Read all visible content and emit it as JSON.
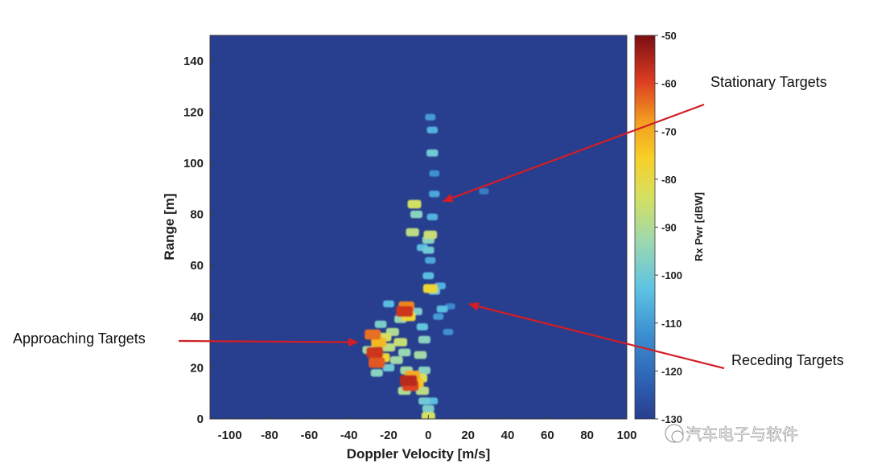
{
  "chart_data": {
    "type": "heatmap",
    "title": "",
    "xlabel": "Doppler Velocity [m/s]",
    "ylabel": "Range [m]",
    "xlim": [
      -110,
      100
    ],
    "ylim": [
      0,
      150
    ],
    "xticks": [
      -100,
      -80,
      -60,
      -40,
      -20,
      0,
      20,
      40,
      60,
      80,
      100
    ],
    "yticks": [
      0,
      20,
      40,
      60,
      80,
      100,
      120,
      140
    ],
    "background_value": -125,
    "grid": false,
    "colorbar": {
      "label": "Rx Pwr [dBW]",
      "range": [
        -130,
        -50
      ],
      "ticks": [
        -50,
        -60,
        -70,
        -80,
        -90,
        -100,
        -110,
        -120,
        -130
      ],
      "colormap": "jet"
    },
    "cells": [
      {
        "x": -28,
        "y": 33,
        "value": -64
      },
      {
        "x": -27,
        "y": 26,
        "value": -58
      },
      {
        "x": -26,
        "y": 22,
        "value": -62
      },
      {
        "x": -25,
        "y": 30,
        "value": -72
      },
      {
        "x": -23,
        "y": 24,
        "value": -78
      },
      {
        "x": -22,
        "y": 32,
        "value": -84
      },
      {
        "x": -20,
        "y": 28,
        "value": -88
      },
      {
        "x": -18,
        "y": 34,
        "value": -90
      },
      {
        "x": -16,
        "y": 23,
        "value": -92
      },
      {
        "x": -14,
        "y": 30,
        "value": -86
      },
      {
        "x": -12,
        "y": 26,
        "value": -94
      },
      {
        "x": -24,
        "y": 37,
        "value": -98
      },
      {
        "x": -26,
        "y": 18,
        "value": -96
      },
      {
        "x": -20,
        "y": 20,
        "value": -100
      },
      {
        "x": -30,
        "y": 27,
        "value": -92
      },
      {
        "x": -12,
        "y": 42,
        "value": -58
      },
      {
        "x": -11,
        "y": 44,
        "value": -66
      },
      {
        "x": -10,
        "y": 40,
        "value": -78
      },
      {
        "x": -6,
        "y": 42,
        "value": -98
      },
      {
        "x": -14,
        "y": 39,
        "value": -94
      },
      {
        "x": -20,
        "y": 45,
        "value": -104
      },
      {
        "x": -10,
        "y": 15,
        "value": -56
      },
      {
        "x": -9,
        "y": 13,
        "value": -60
      },
      {
        "x": -8,
        "y": 17,
        "value": -70
      },
      {
        "x": -6,
        "y": 14,
        "value": -74
      },
      {
        "x": -4,
        "y": 16,
        "value": -82
      },
      {
        "x": -3,
        "y": 11,
        "value": -88
      },
      {
        "x": -12,
        "y": 11,
        "value": -90
      },
      {
        "x": -2,
        "y": 19,
        "value": -96
      },
      {
        "x": -11,
        "y": 19,
        "value": -92
      },
      {
        "x": -4,
        "y": 25,
        "value": -92
      },
      {
        "x": -2,
        "y": 31,
        "value": -96
      },
      {
        "x": -3,
        "y": 36,
        "value": -102
      },
      {
        "x": 0,
        "y": 1,
        "value": -84
      },
      {
        "x": 0,
        "y": 4,
        "value": -98
      },
      {
        "x": -2,
        "y": 7,
        "value": -100
      },
      {
        "x": 2,
        "y": 7,
        "value": -104
      },
      {
        "x": 1,
        "y": 51,
        "value": -78
      },
      {
        "x": 3,
        "y": 50,
        "value": -100
      },
      {
        "x": 6,
        "y": 52,
        "value": -106
      },
      {
        "x": 0,
        "y": 56,
        "value": -104
      },
      {
        "x": 1,
        "y": 62,
        "value": -108
      },
      {
        "x": 0,
        "y": 66,
        "value": -100
      },
      {
        "x": 1,
        "y": 72,
        "value": -86
      },
      {
        "x": 0,
        "y": 70,
        "value": -96
      },
      {
        "x": -8,
        "y": 73,
        "value": -88
      },
      {
        "x": -7,
        "y": 84,
        "value": -84
      },
      {
        "x": -6,
        "y": 80,
        "value": -96
      },
      {
        "x": -3,
        "y": 67,
        "value": -104
      },
      {
        "x": 2,
        "y": 79,
        "value": -106
      },
      {
        "x": 3,
        "y": 88,
        "value": -108
      },
      {
        "x": 2,
        "y": 104,
        "value": -100
      },
      {
        "x": 2,
        "y": 113,
        "value": -106
      },
      {
        "x": 1,
        "y": 118,
        "value": -110
      },
      {
        "x": 3,
        "y": 96,
        "value": -112
      },
      {
        "x": 7,
        "y": 43,
        "value": -104
      },
      {
        "x": 5,
        "y": 40,
        "value": -110
      },
      {
        "x": 11,
        "y": 44,
        "value": -114
      },
      {
        "x": 28,
        "y": 89,
        "value": -116
      },
      {
        "x": 10,
        "y": 34,
        "value": -112
      }
    ],
    "annotations": [
      {
        "text": "Stationary Targets",
        "arrow_to": [
          7,
          85
        ]
      },
      {
        "text": "Approaching Targets",
        "arrow_to": [
          -35,
          30
        ]
      },
      {
        "text": "Receding Targets",
        "arrow_to": [
          20,
          45
        ]
      }
    ]
  },
  "colors": {
    "background": "#283e8e",
    "arrow": "#d21e26"
  },
  "watermark": "汽车电子与软件"
}
